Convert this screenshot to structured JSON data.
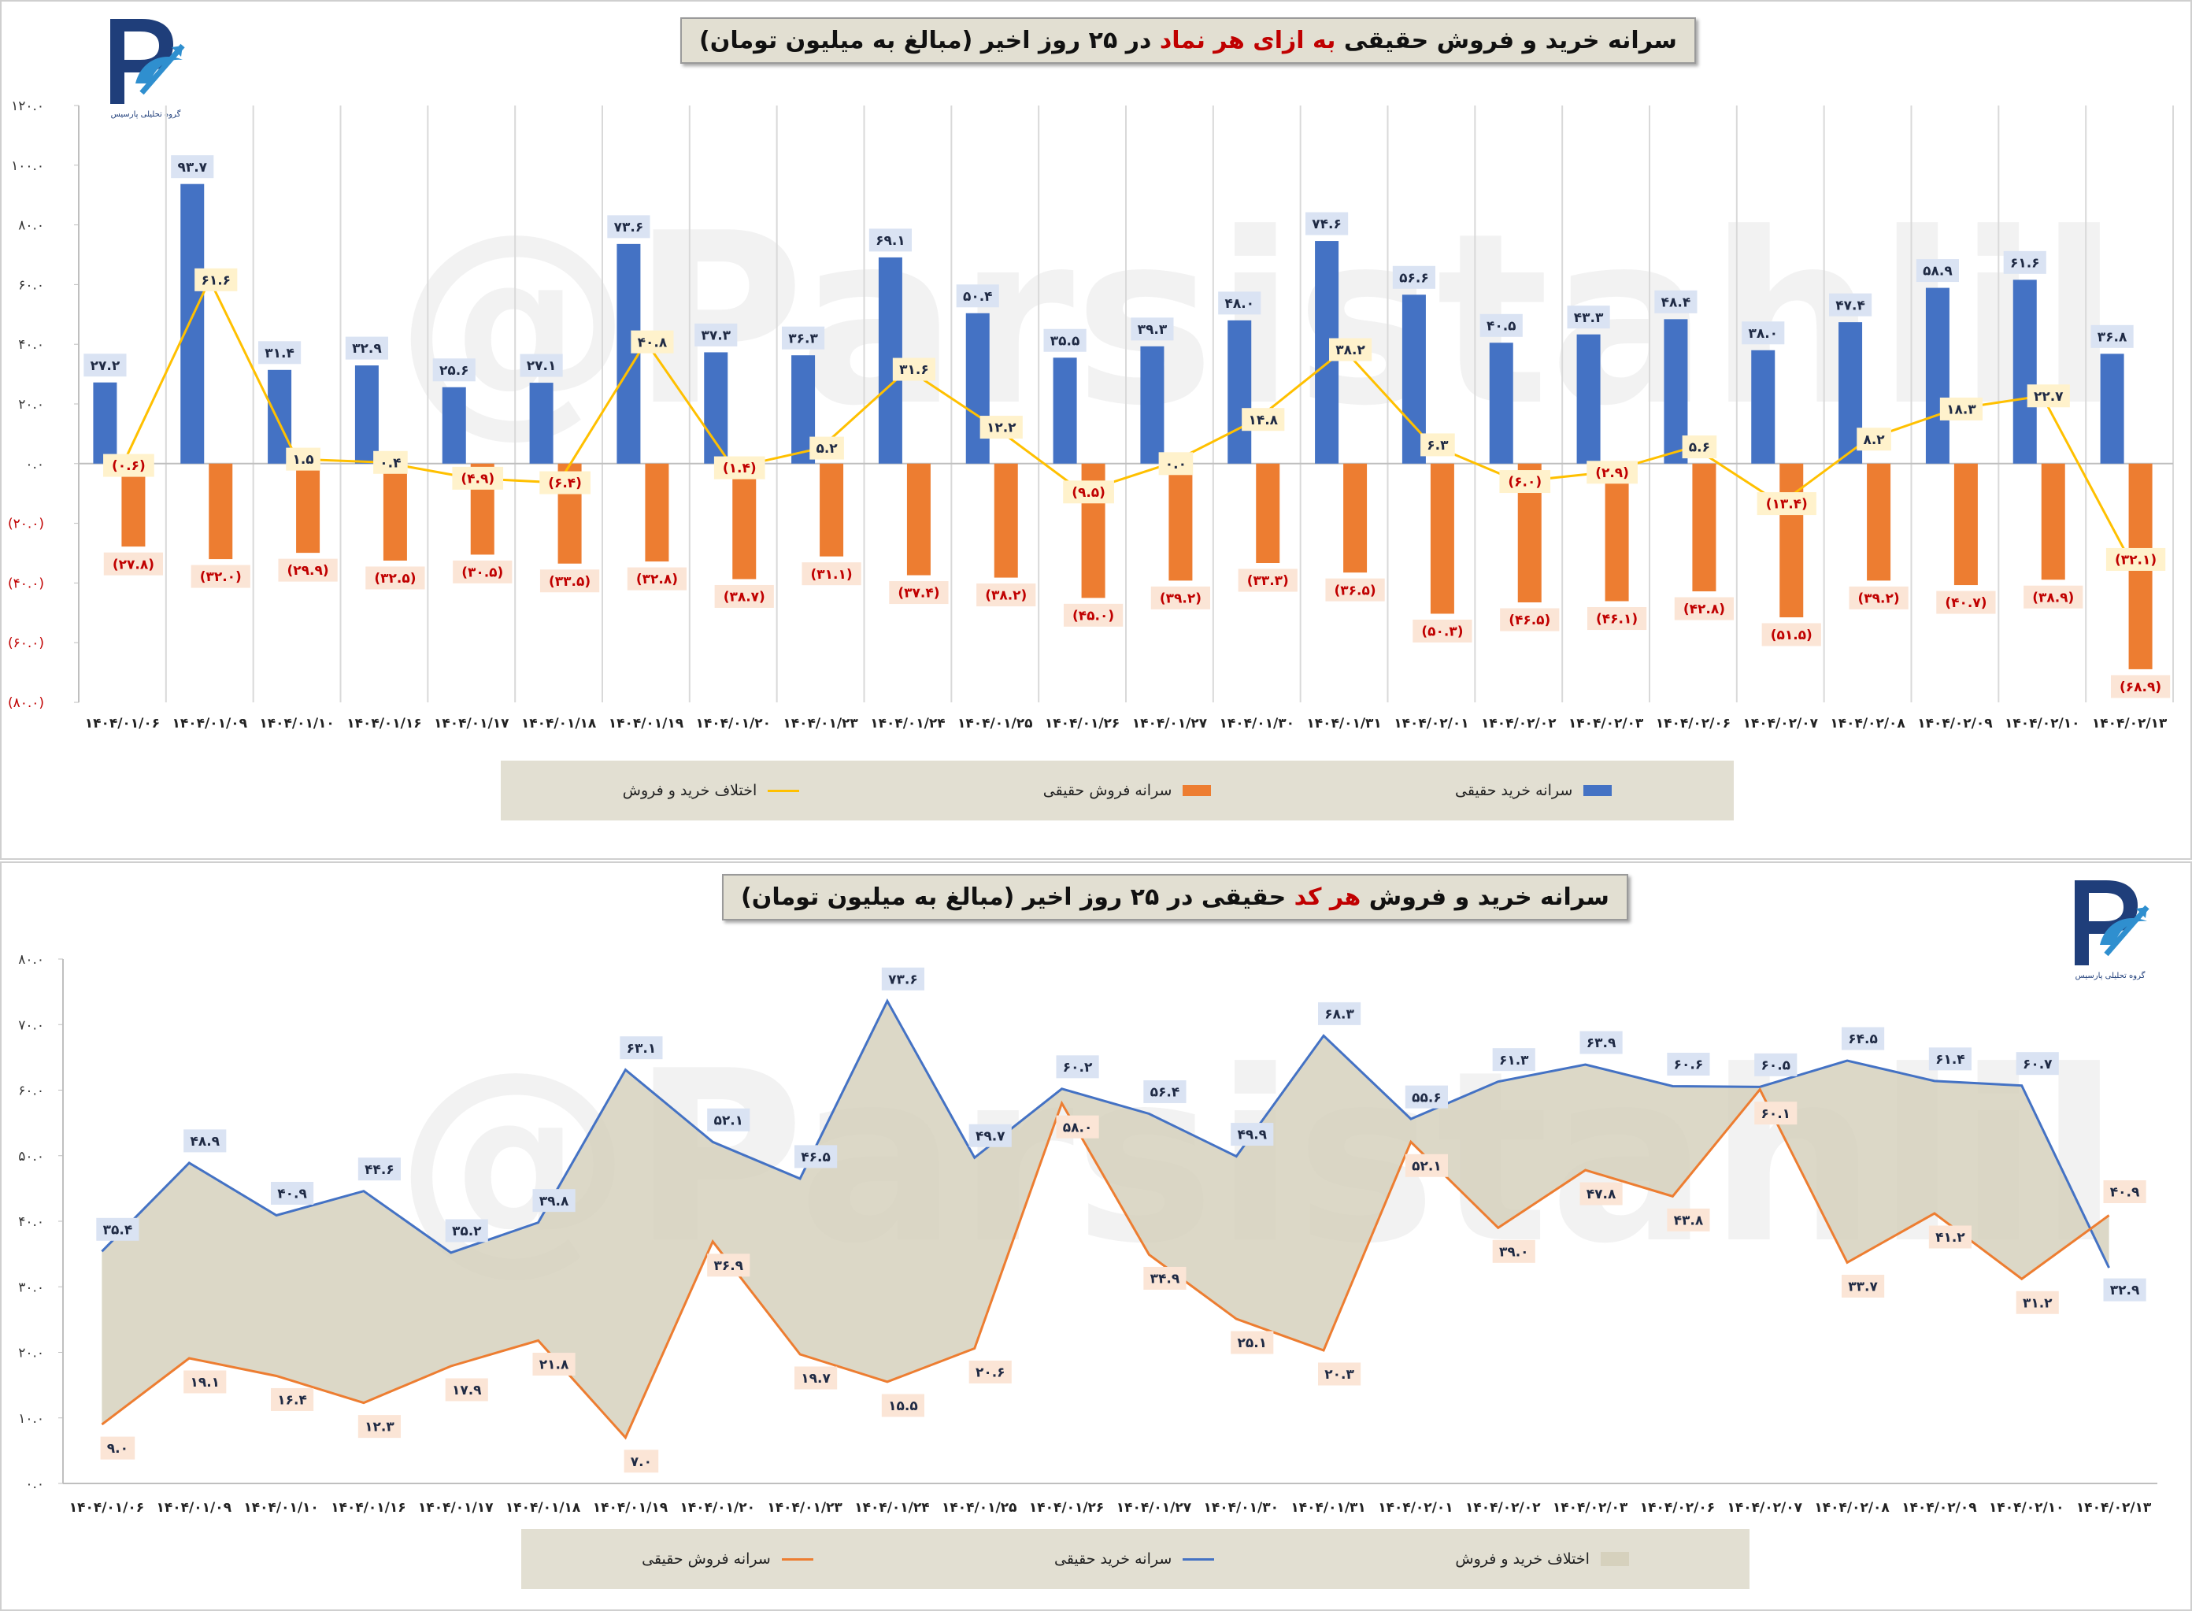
{
  "top_chart": {
    "title_pre": "سرانه خرید و فروش حقیقی ",
    "title_hl": "به ازای هر نماد",
    "title_post": " در ۲۵ روز اخیر (مبالغ به میلیون تومان)",
    "legend": {
      "buy": "سرانه خرید حقیقی",
      "sell": "سرانه فروش حقیقی",
      "diff": "اختلاف خرید و فروش"
    }
  },
  "bottom_chart": {
    "title_pre": "سرانه خرید و فروش ",
    "title_hl": "هر کد",
    "title_post": " حقیقی در ۲۵ روز اخیر (مبالغ به میلیون تومان)",
    "legend": {
      "diff": "اختلاف خرید و فروش",
      "buy": "سرانه خرید حقیقی",
      "sell": "سرانه فروش حقیقی"
    }
  },
  "logo": {
    "caption": "گروه تحلیلی پارسیس",
    "icon": "parsis-logo-icon"
  },
  "watermark": "@Parsistahlil",
  "colors": {
    "buy": "#4472c4",
    "sell": "#ed7d31",
    "diff": "#ffc000",
    "area": "#e2dfd2",
    "label_buy_bg": "#dae3f3",
    "label_sell_bg": "#fbe5d6",
    "label_diff_bg": "#fff2cc",
    "neg_text": "#c00000"
  },
  "chart_data": [
    {
      "type": "bar",
      "categories": [
        "۱۴۰۴/۰۱/۰۶",
        "۱۴۰۴/۰۱/۰۹",
        "۱۴۰۴/۰۱/۱۰",
        "۱۴۰۴/۰۱/۱۶",
        "۱۴۰۴/۰۱/۱۷",
        "۱۴۰۴/۰۱/۱۸",
        "۱۴۰۴/۰۱/۱۹",
        "۱۴۰۴/۰۱/۲۰",
        "۱۴۰۴/۰۱/۲۳",
        "۱۴۰۴/۰۱/۲۴",
        "۱۴۰۴/۰۱/۲۵",
        "۱۴۰۴/۰۱/۲۶",
        "۱۴۰۴/۰۱/۲۷",
        "۱۴۰۴/۰۱/۳۰",
        "۱۴۰۴/۰۱/۳۱",
        "۱۴۰۴/۰۲/۰۱",
        "۱۴۰۴/۰۲/۰۲",
        "۱۴۰۴/۰۲/۰۳",
        "۱۴۰۴/۰۲/۰۶",
        "۱۴۰۴/۰۲/۰۷",
        "۱۴۰۴/۰۲/۰۸",
        "۱۴۰۴/۰۲/۰۹",
        "۱۴۰۴/۰۲/۱۰",
        "۱۴۰۴/۰۲/۱۳"
      ],
      "y_ticks": [
        "۱۲۰.۰",
        "۱۰۰.۰",
        "۸۰.۰",
        "۶۰.۰",
        "۴۰.۰",
        "۲۰.۰",
        "۰.۰",
        "(۲۰.۰)",
        "(۴۰.۰)",
        "(۶۰.۰)",
        "(۸۰.۰)"
      ],
      "ylim": [
        -80,
        120
      ],
      "series": [
        {
          "name": "سرانه خرید حقیقی",
          "type": "bar",
          "values": [
            27.2,
            93.7,
            31.4,
            32.9,
            25.6,
            27.1,
            73.6,
            37.3,
            36.3,
            69.1,
            50.4,
            35.5,
            39.3,
            48.0,
            74.6,
            56.6,
            40.5,
            43.3,
            48.4,
            38.0,
            47.4,
            58.9,
            61.6,
            36.8
          ],
          "labels": [
            "۲۷.۲",
            "۹۳.۷",
            "۳۱.۴",
            "۳۲.۹",
            "۲۵.۶",
            "۲۷.۱",
            "۷۳.۶",
            "۳۷.۳",
            "۳۶.۳",
            "۶۹.۱",
            "۵۰.۴",
            "۳۵.۵",
            "۳۹.۳",
            "۴۸.۰",
            "۷۴.۶",
            "۵۶.۶",
            "۴۰.۵",
            "۴۳.۳",
            "۴۸.۴",
            "۳۸.۰",
            "۴۷.۴",
            "۵۸.۹",
            "۶۱.۶",
            "۳۶.۸"
          ]
        },
        {
          "name": "سرانه فروش حقیقی",
          "type": "bar",
          "values": [
            -27.8,
            -32.0,
            -29.9,
            -32.5,
            -30.5,
            -33.5,
            -32.8,
            -38.7,
            -31.1,
            -37.4,
            -38.2,
            -45.0,
            -39.2,
            -33.3,
            -36.5,
            -50.3,
            -46.5,
            -46.1,
            -42.8,
            -51.5,
            -39.2,
            -40.7,
            -38.9,
            -68.9
          ],
          "labels": [
            "(۲۷.۸)",
            "(۳۲.۰)",
            "(۲۹.۹)",
            "(۳۲.۵)",
            "(۳۰.۵)",
            "(۳۳.۵)",
            "(۳۲.۸)",
            "(۳۸.۷)",
            "(۳۱.۱)",
            "(۳۷.۴)",
            "(۳۸.۲)",
            "(۴۵.۰)",
            "(۳۹.۲)",
            "(۳۳.۳)",
            "(۳۶.۵)",
            "(۵۰.۳)",
            "(۴۶.۵)",
            "(۴۶.۱)",
            "(۴۲.۸)",
            "(۵۱.۵)",
            "(۳۹.۲)",
            "(۴۰.۷)",
            "(۳۸.۹)",
            "(۶۸.۹)"
          ]
        },
        {
          "name": "اختلاف خرید و فروش",
          "type": "line",
          "values": [
            -0.6,
            61.6,
            1.5,
            0.4,
            -4.9,
            -6.4,
            40.8,
            -1.4,
            5.2,
            31.6,
            12.2,
            -9.5,
            0.0,
            14.8,
            38.2,
            6.3,
            -6.0,
            -2.9,
            5.6,
            -13.4,
            8.2,
            18.3,
            22.7,
            -32.1
          ],
          "labels": [
            "(۰.۶)",
            "۶۱.۶",
            "۱.۵",
            "۰.۴",
            "(۴.۹)",
            "(۶.۴)",
            "۴۰.۸",
            "(۱.۴)",
            "۵.۲",
            "۳۱.۶",
            "۱۲.۲",
            "(۹.۵)",
            "۰.۰",
            "۱۴.۸",
            "۳۸.۲",
            "۶.۳",
            "(۶.۰)",
            "(۲.۹)",
            "۵.۶",
            "(۱۳.۴)",
            "۸.۲",
            "۱۸.۳",
            "۲۲.۷",
            "(۳۲.۱)"
          ]
        }
      ]
    },
    {
      "type": "area",
      "categories": [
        "۱۴۰۴/۰۱/۰۶",
        "۱۴۰۴/۰۱/۰۹",
        "۱۴۰۴/۰۱/۱۰",
        "۱۴۰۴/۰۱/۱۶",
        "۱۴۰۴/۰۱/۱۷",
        "۱۴۰۴/۰۱/۱۸",
        "۱۴۰۴/۰۱/۱۹",
        "۱۴۰۴/۰۱/۲۰",
        "۱۴۰۴/۰۱/۲۳",
        "۱۴۰۴/۰۱/۲۴",
        "۱۴۰۴/۰۱/۲۵",
        "۱۴۰۴/۰۱/۲۶",
        "۱۴۰۴/۰۱/۲۷",
        "۱۴۰۴/۰۱/۳۰",
        "۱۴۰۴/۰۱/۳۱",
        "۱۴۰۴/۰۲/۰۱",
        "۱۴۰۴/۰۲/۰۲",
        "۱۴۰۴/۰۲/۰۳",
        "۱۴۰۴/۰۲/۰۶",
        "۱۴۰۴/۰۲/۰۷",
        "۱۴۰۴/۰۲/۰۸",
        "۱۴۰۴/۰۲/۰۹",
        "۱۴۰۴/۰۲/۱۰",
        "۱۴۰۴/۰۲/۱۳"
      ],
      "y_ticks": [
        "۸۰.۰",
        "۷۰.۰",
        "۶۰.۰",
        "۵۰.۰",
        "۴۰.۰",
        "۳۰.۰",
        "۲۰.۰",
        "۱۰.۰",
        "۰.۰"
      ],
      "ylim": [
        0,
        80
      ],
      "series": [
        {
          "name": "سرانه خرید حقیقی",
          "type": "line",
          "values": [
            35.4,
            48.9,
            40.9,
            44.6,
            35.2,
            39.8,
            63.1,
            52.1,
            46.5,
            73.6,
            49.7,
            60.2,
            56.4,
            49.9,
            68.3,
            55.6,
            61.3,
            63.9,
            60.6,
            60.5,
            64.5,
            61.4,
            60.7,
            32.9
          ],
          "labels": [
            "۳۵.۴",
            "۴۸.۹",
            "۴۰.۹",
            "۴۴.۶",
            "۳۵.۲",
            "۳۹.۸",
            "۶۳.۱",
            "۵۲.۱",
            "۴۶.۵",
            "۷۳.۶",
            "۴۹.۷",
            "۶۰.۲",
            "۵۶.۴",
            "۴۹.۹",
            "۶۸.۳",
            "۵۵.۶",
            "۶۱.۳",
            "۶۳.۹",
            "۶۰.۶",
            "۶۰.۵",
            "۶۴.۵",
            "۶۱.۴",
            "۶۰.۷",
            "۳۲.۹"
          ]
        },
        {
          "name": "سرانه فروش حقیقی",
          "type": "line",
          "values": [
            9.0,
            19.1,
            16.4,
            12.3,
            17.9,
            21.8,
            7.0,
            36.9,
            19.7,
            15.5,
            20.6,
            58.0,
            34.9,
            25.1,
            20.3,
            52.1,
            39.0,
            47.8,
            43.8,
            60.1,
            33.7,
            41.2,
            31.2,
            40.9
          ],
          "labels": [
            "۹.۰",
            "۱۹.۱",
            "۱۶.۴",
            "۱۲.۳",
            "۱۷.۹",
            "۲۱.۸",
            "۷.۰",
            "۳۶.۹",
            "۱۹.۷",
            "۱۵.۵",
            "۲۰.۶",
            "۵۸.۰",
            "۳۴.۹",
            "۲۵.۱",
            "۲۰.۳",
            "۵۲.۱",
            "۳۹.۰",
            "۴۷.۸",
            "۴۳.۸",
            "۶۰.۱",
            "۳۳.۷",
            "۴۱.۲",
            "۳۱.۲",
            "۴۰.۹"
          ]
        },
        {
          "name": "اختلاف خرید و فروش",
          "type": "area_between"
        }
      ]
    }
  ]
}
